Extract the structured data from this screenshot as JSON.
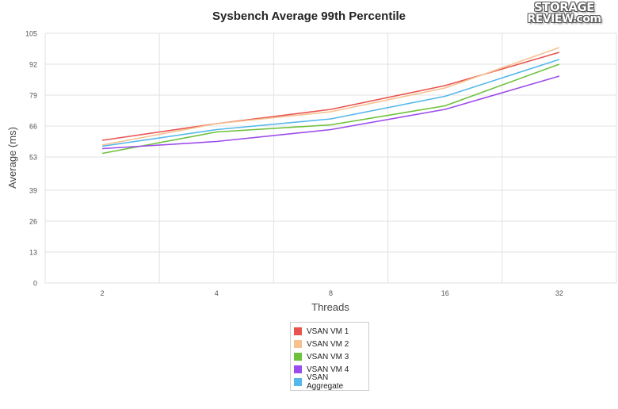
{
  "logo": {
    "line1": "STORAGE",
    "line2": "REVIEW.com"
  },
  "chart_data": {
    "type": "line",
    "title": "Sysbench Average 99th Percentile",
    "xlabel": "Threads",
    "ylabel": "Average (ms)",
    "categories": [
      "2",
      "4",
      "8",
      "16",
      "32"
    ],
    "yticks": [
      0,
      13,
      26,
      39,
      53,
      66,
      79,
      92,
      105
    ],
    "ylim": [
      0,
      105
    ],
    "grid": true,
    "legend_position": "bottom",
    "series": [
      {
        "name": "VSAN VM 1",
        "color": "#e8534f",
        "values": [
          60,
          67,
          73,
          83,
          97
        ]
      },
      {
        "name": "VSAN VM 2",
        "color": "#f5c18f",
        "values": [
          58,
          67,
          72,
          82,
          99
        ]
      },
      {
        "name": "VSAN VM 3",
        "color": "#6ec13c",
        "values": [
          54.5,
          63.5,
          66.5,
          74.5,
          92
        ]
      },
      {
        "name": "VSAN VM 4",
        "color": "#9b4cec",
        "values": [
          56.5,
          59.5,
          64.5,
          73,
          87
        ]
      },
      {
        "name": "VSAN Aggregate",
        "color": "#55b8ea",
        "values": [
          57.5,
          64.5,
          69,
          78.5,
          94
        ]
      }
    ]
  }
}
